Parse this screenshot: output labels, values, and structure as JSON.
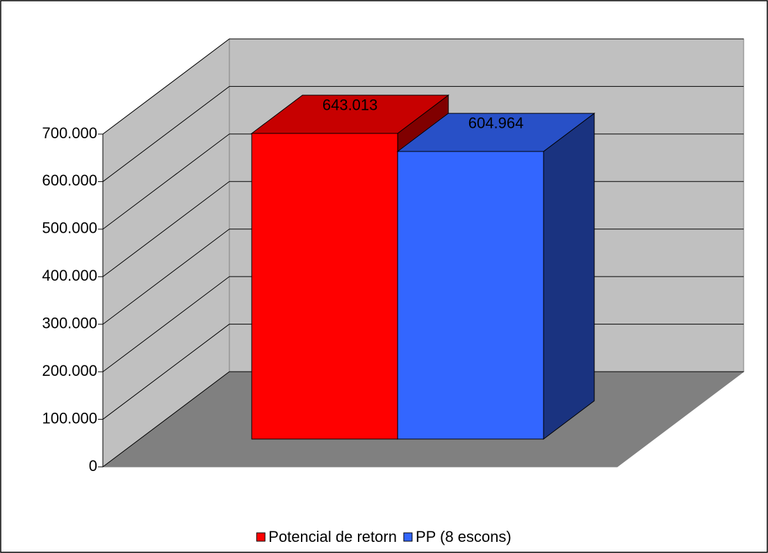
{
  "chart_data": {
    "type": "bar",
    "categories": [
      null
    ],
    "series": [
      {
        "name": "Potencial de retorn",
        "color": "#ff0000",
        "values": [
          643013
        ],
        "value_labels": [
          "643.013"
        ]
      },
      {
        "name": "PP (8 escons)",
        "color": "#3366ff",
        "values": [
          604964
        ],
        "value_labels": [
          "604.964"
        ]
      }
    ],
    "ylim": [
      0,
      700000
    ],
    "yticks": [
      0,
      {
        "value": 100000,
        "label": "100.000"
      },
      {
        "value": 200000,
        "label": "200.000"
      },
      {
        "value": 300000,
        "label": "300.000"
      },
      {
        "value": 400000,
        "label": "400.000"
      },
      {
        "value": 500000,
        "label": "500.000"
      },
      {
        "value": 600000,
        "label": "600.000"
      },
      {
        "value": 700000,
        "label": "700.000"
      }
    ],
    "grid": true,
    "legend": "bottom"
  }
}
